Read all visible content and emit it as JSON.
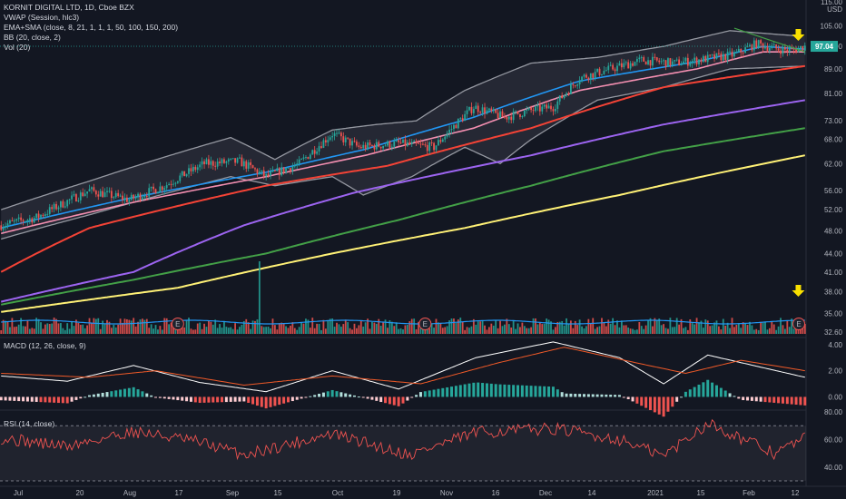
{
  "header": {
    "symbol_line": "KORNIT DIGITAL LTD, 1D, Cboe BZX",
    "indicators": [
      "VWAP (Session, hlc3)",
      "EMA+SMA (close, 8, 21, 1, 1, 1, 50, 100, 150, 200)",
      "BB (20, close, 2)",
      "Vol (20)"
    ],
    "macd_label": "MACD (12, 26, close, 9)",
    "rsi_label": "RSI (14, close)"
  },
  "price_axis": {
    "unit": "USD",
    "ticks": [
      "115.00",
      "105.00",
      "97.00",
      "89.00",
      "81.00",
      "73.00",
      "68.00",
      "62.00",
      "56.00",
      "52.00",
      "48.00",
      "44.00",
      "41.00",
      "38.00",
      "35.00",
      "32.60"
    ],
    "last_price": "97.04"
  },
  "macd_axis": {
    "ticks": [
      "4.00",
      "2.00",
      "0.00"
    ]
  },
  "rsi_axis": {
    "ticks": [
      "80.00",
      "60.00",
      "40.00"
    ]
  },
  "time_axis": {
    "ticks": [
      "Jul",
      "20",
      "Aug",
      "17",
      "Sep",
      "15",
      "Oct",
      "19",
      "Nov",
      "16",
      "Dec",
      "14",
      "2021",
      "15",
      "Feb",
      "12"
    ]
  },
  "earnings_marker": "E",
  "colors": {
    "background": "#131722",
    "up": "#26a69a",
    "down": "#ef5350",
    "ema8": "#2196f3",
    "ema21": "#f48fb1",
    "sma50": "#f44336",
    "sma100": "#9c64f0",
    "sma150": "#43a047",
    "sma200": "#fff176",
    "bb_band": "#9598a1",
    "last_price_tag": "#26a69a",
    "arrow": "#f9e000"
  },
  "chart_data": [
    {
      "type": "candlestick",
      "title": "KORNIT DIGITAL LTD, 1D, Cboe BZX",
      "y_scale": "log",
      "ylim": [
        32.6,
        115
      ],
      "x": [
        "Jul",
        "20",
        "Aug",
        "17",
        "Sep",
        "15",
        "Oct",
        "19",
        "Nov",
        "16",
        "Dec",
        "14",
        "2021",
        "15",
        "Feb",
        "12"
      ],
      "close_path": [
        [
          0,
          49
        ],
        [
          16,
          50.5
        ],
        [
          40,
          56
        ],
        [
          58,
          54
        ],
        [
          74,
          57
        ],
        [
          92,
          62
        ],
        [
          108,
          62.5
        ],
        [
          120,
          59
        ],
        [
          135,
          62
        ],
        [
          150,
          69.5
        ],
        [
          162,
          66
        ],
        [
          180,
          67
        ],
        [
          196,
          66
        ],
        [
          214,
          77
        ],
        [
          228,
          74
        ],
        [
          240,
          76
        ],
        [
          250,
          77
        ],
        [
          262,
          86
        ],
        [
          276,
          89
        ],
        [
          290,
          92
        ],
        [
          305,
          91
        ],
        [
          315,
          92
        ],
        [
          332,
          94
        ],
        [
          342,
          98
        ],
        [
          352,
          96
        ],
        [
          358,
          95.5
        ],
        [
          364,
          97.04
        ]
      ],
      "series": [
        {
          "name": "EMA 8",
          "values": [
            [
              0,
              48.5
            ],
            [
              60,
              54.5
            ],
            [
              120,
              60
            ],
            [
              165,
              65.5
            ],
            [
              214,
              74
            ],
            [
              262,
              85
            ],
            [
              315,
              91.5
            ],
            [
              345,
              97
            ],
            [
              364,
              96
            ]
          ]
        },
        {
          "name": "EMA 21",
          "values": [
            [
              0,
              47.5
            ],
            [
              60,
              53.5
            ],
            [
              120,
              59
            ],
            [
              165,
              64
            ],
            [
              214,
              71
            ],
            [
              262,
              82
            ],
            [
              315,
              89
            ],
            [
              345,
              95
            ],
            [
              364,
              95
            ]
          ]
        },
        {
          "name": "SMA 50",
          "values": [
            [
              0,
              41
            ],
            [
              40,
              48.5
            ],
            [
              120,
              57
            ],
            [
              175,
              61.5
            ],
            [
              240,
              71
            ],
            [
              300,
              83
            ],
            [
              364,
              90
            ]
          ]
        },
        {
          "name": "SMA 100",
          "values": [
            [
              0,
              36.6
            ],
            [
              60,
              41
            ],
            [
              110,
              49
            ],
            [
              160,
              55.5
            ],
            [
              240,
              64
            ],
            [
              300,
              72
            ],
            [
              364,
              79
            ]
          ]
        },
        {
          "name": "SMA 150",
          "values": [
            [
              0,
              36.2
            ],
            [
              60,
              39.8
            ],
            [
              120,
              44
            ],
            [
              180,
              50
            ],
            [
              240,
              57
            ],
            [
              300,
              65
            ],
            [
              364,
              71
            ]
          ]
        },
        {
          "name": "SMA 200",
          "values": [
            [
              0,
              35.2
            ],
            [
              80,
              38.6
            ],
            [
              150,
              44
            ],
            [
              210,
              48.5
            ],
            [
              280,
              55
            ],
            [
              364,
              64
            ]
          ]
        },
        {
          "name": "BB upper",
          "values": [
            [
              0,
              52
            ],
            [
              40,
              58
            ],
            [
              104,
              68.5
            ],
            [
              124,
              63
            ],
            [
              150,
              70.5
            ],
            [
              170,
              72
            ],
            [
              188,
              73
            ],
            [
              210,
              82
            ],
            [
              240,
              91
            ],
            [
              270,
              93
            ],
            [
              300,
              97
            ],
            [
              330,
              103
            ],
            [
              360,
              101
            ]
          ]
        },
        {
          "name": "BB lower",
          "values": [
            [
              0,
              46.5
            ],
            [
              40,
              51
            ],
            [
              104,
              59
            ],
            [
              124,
              57
            ],
            [
              150,
              59
            ],
            [
              164,
              55
            ],
            [
              186,
              59
            ],
            [
              210,
              66
            ],
            [
              226,
              62
            ],
            [
              240,
              68
            ],
            [
              270,
              79
            ],
            [
              300,
              83
            ],
            [
              330,
              89
            ],
            [
              364,
              90
            ]
          ]
        }
      ]
    },
    {
      "type": "bar",
      "title": "Vol (20)",
      "volume_shape": "mostly short bars near the panel base, with spikes on Jul 20, Sep 15 (largest), Nov 16, Dec 14 and Feb 2021",
      "spikes": [
        {
          "x": "20",
          "relative": 0.22
        },
        {
          "x": "15",
          "relative": 1.0
        },
        {
          "x": "16",
          "relative": 0.18
        },
        {
          "x": "14",
          "relative": 0.15
        },
        {
          "x": "Feb",
          "relative": 0.22
        }
      ]
    },
    {
      "type": "line",
      "title": "MACD (12, 26, close, 9)",
      "ylim": [
        -0.8,
        4.4
      ],
      "series": [
        {
          "name": "MACD",
          "values": [
            [
              0,
              1.6
            ],
            [
              30,
              1.2
            ],
            [
              60,
              2.4
            ],
            [
              90,
              1.1
            ],
            [
              120,
              0.4
            ],
            [
              150,
              2.0
            ],
            [
              180,
              0.6
            ],
            [
              215,
              3.0
            ],
            [
              250,
              4.2
            ],
            [
              280,
              3.0
            ],
            [
              300,
              1.0
            ],
            [
              320,
              3.2
            ],
            [
              364,
              1.5
            ]
          ]
        },
        {
          "name": "Signal",
          "values": [
            [
              0,
              1.8
            ],
            [
              40,
              1.5
            ],
            [
              70,
              2.0
            ],
            [
              110,
              0.9
            ],
            [
              150,
              1.6
            ],
            [
              190,
              1.0
            ],
            [
              225,
              2.6
            ],
            [
              255,
              3.8
            ],
            [
              285,
              2.7
            ],
            [
              310,
              1.8
            ],
            [
              335,
              2.8
            ],
            [
              364,
              2.0
            ]
          ]
        }
      ],
      "histogram_shape": "positive teal bars around Oct, Nov and Dec highs; negative red bars in late Sep, mid Nov and late Dec and Feb"
    },
    {
      "type": "line",
      "title": "RSI (14, close)",
      "ylim": [
        30,
        80
      ],
      "bands": [
        30,
        70
      ],
      "series": [
        {
          "name": "RSI",
          "values": [
            [
              0,
              61
            ],
            [
              30,
              55
            ],
            [
              60,
              66
            ],
            [
              90,
              58
            ],
            [
              110,
              49
            ],
            [
              150,
              64
            ],
            [
              185,
              49
            ],
            [
              215,
              65
            ],
            [
              250,
              68
            ],
            [
              280,
              60
            ],
            [
              300,
              48
            ],
            [
              320,
              72
            ],
            [
              350,
              50
            ],
            [
              364,
              61
            ]
          ]
        }
      ]
    }
  ]
}
